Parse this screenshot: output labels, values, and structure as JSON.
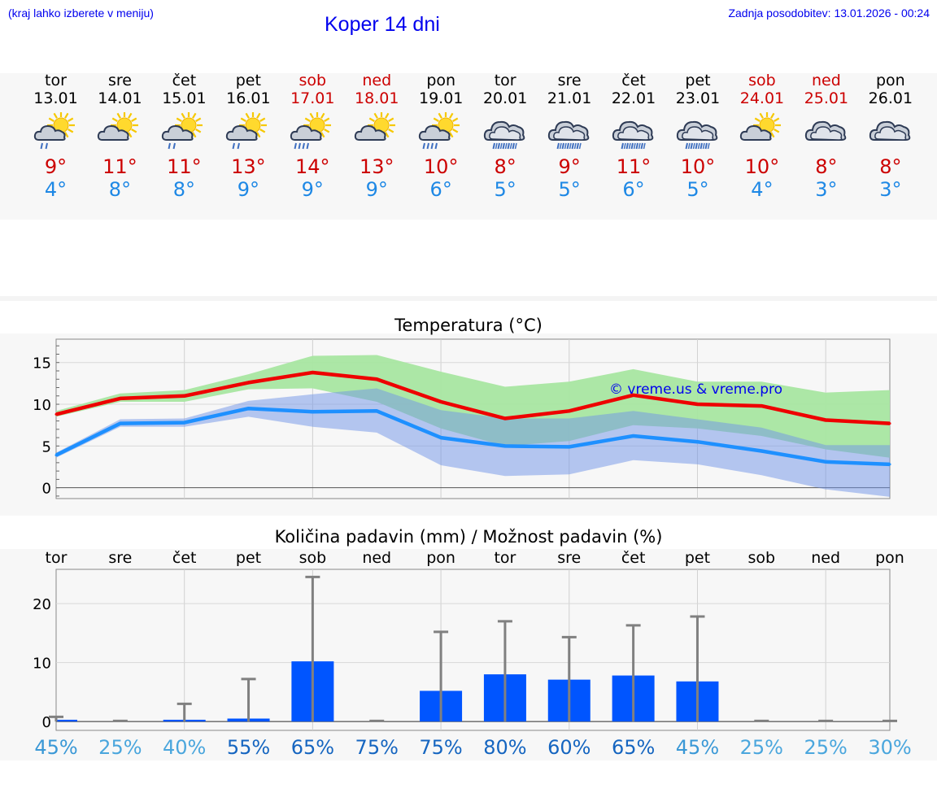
{
  "header": {
    "menu_hint": "(kraj lahko izberete v meniju)",
    "title": "Koper 14 dni",
    "updated": "Zadnja posodobitev: 13.01.2026 - 00:24"
  },
  "colors": {
    "max_line": "#ee0000",
    "min_line": "#1e90ff",
    "max_band": "#a8e6a1",
    "min_band": "#a9c4f5",
    "overlap_band": "#7cc4a0",
    "bar": "#0055ff",
    "errorbar": "#808080",
    "weekend_text": "#cc0000"
  },
  "days": [
    {
      "name": "tor",
      "date": "13.01",
      "weekend": false,
      "icon": "sun-cloud-light-rain-icon",
      "tmax": "9°",
      "tmin": "4°"
    },
    {
      "name": "sre",
      "date": "14.01",
      "weekend": false,
      "icon": "sun-cloud-icon",
      "tmax": "11°",
      "tmin": "8°"
    },
    {
      "name": "čet",
      "date": "15.01",
      "weekend": false,
      "icon": "sun-cloud-light-rain-icon",
      "tmax": "11°",
      "tmin": "8°"
    },
    {
      "name": "pet",
      "date": "16.01",
      "weekend": false,
      "icon": "sun-cloud-light-rain-icon",
      "tmax": "13°",
      "tmin": "9°"
    },
    {
      "name": "sob",
      "date": "17.01",
      "weekend": true,
      "icon": "sun-cloud-rain-icon",
      "tmax": "14°",
      "tmin": "9°"
    },
    {
      "name": "ned",
      "date": "18.01",
      "weekend": true,
      "icon": "sun-cloud-icon",
      "tmax": "13°",
      "tmin": "9°"
    },
    {
      "name": "pon",
      "date": "19.01",
      "weekend": false,
      "icon": "sun-cloud-rain-icon",
      "tmax": "10°",
      "tmin": "6°"
    },
    {
      "name": "tor",
      "date": "20.01",
      "weekend": false,
      "icon": "cloud-rain-icon",
      "tmax": "8°",
      "tmin": "5°"
    },
    {
      "name": "sre",
      "date": "21.01",
      "weekend": false,
      "icon": "cloud-rain-icon",
      "tmax": "9°",
      "tmin": "5°"
    },
    {
      "name": "čet",
      "date": "22.01",
      "weekend": false,
      "icon": "cloud-rain-icon",
      "tmax": "11°",
      "tmin": "6°"
    },
    {
      "name": "pet",
      "date": "23.01",
      "weekend": false,
      "icon": "cloud-rain-icon",
      "tmax": "10°",
      "tmin": "5°"
    },
    {
      "name": "sob",
      "date": "24.01",
      "weekend": true,
      "icon": "sun-cloud-icon",
      "tmax": "10°",
      "tmin": "4°"
    },
    {
      "name": "ned",
      "date": "25.01",
      "weekend": true,
      "icon": "cloud-icon",
      "tmax": "8°",
      "tmin": "3°"
    },
    {
      "name": "pon",
      "date": "26.01",
      "weekend": false,
      "icon": "cloud-icon",
      "tmax": "8°",
      "tmin": "3°"
    }
  ],
  "chart_data": [
    {
      "type": "line",
      "title": "Temperatura (°C)",
      "watermark": "© vreme.us & vreme.pro",
      "x": [
        0,
        1,
        2,
        3,
        4,
        5,
        6,
        7,
        8,
        9,
        10,
        11,
        12,
        13
      ],
      "ylim": [
        -1.3,
        17.8
      ],
      "yticks": [
        0,
        5,
        10,
        15
      ],
      "grid": true,
      "series": [
        {
          "name": "max",
          "values": [
            8.8,
            10.7,
            11.0,
            12.6,
            13.8,
            13.0,
            10.3,
            8.3,
            9.2,
            11.1,
            10.0,
            9.8,
            8.1,
            7.7
          ],
          "band_low": [
            8.5,
            10.3,
            10.3,
            11.8,
            11.9,
            10.3,
            7.1,
            5.0,
            5.6,
            7.5,
            7.1,
            6.2,
            4.6,
            3.6
          ],
          "band_high": [
            9.2,
            11.3,
            11.7,
            13.6,
            15.8,
            15.9,
            13.9,
            12.1,
            12.7,
            14.2,
            12.7,
            12.7,
            11.4,
            11.7
          ]
        },
        {
          "name": "min",
          "values": [
            3.9,
            7.7,
            7.8,
            9.5,
            9.1,
            9.2,
            6.0,
            5.0,
            4.9,
            6.2,
            5.5,
            4.4,
            3.1,
            2.8
          ],
          "band_low": [
            3.6,
            7.3,
            7.3,
            8.5,
            7.3,
            6.6,
            2.7,
            1.4,
            1.6,
            3.3,
            2.8,
            1.5,
            -0.2,
            -1.1
          ],
          "band_high": [
            4.2,
            8.2,
            8.3,
            10.4,
            11.2,
            11.9,
            9.3,
            8.3,
            8.3,
            9.2,
            8.2,
            7.2,
            5.1,
            5.1
          ]
        }
      ]
    },
    {
      "type": "bar",
      "title": "Količina padavin (mm) / Možnost padavin (%)",
      "categories": [
        "tor",
        "sre",
        "čet",
        "pet",
        "sob",
        "ned",
        "pon",
        "tor",
        "sre",
        "čet",
        "pet",
        "sob",
        "ned",
        "pon"
      ],
      "values": [
        0.3,
        0,
        0.3,
        0.5,
        10.2,
        0,
        5.2,
        8.0,
        7.1,
        7.8,
        6.8,
        0,
        0,
        0
      ],
      "error_high": [
        0.8,
        0.1,
        3.0,
        7.2,
        24.5,
        0.1,
        15.2,
        17.0,
        14.3,
        16.3,
        17.8,
        0.1,
        0.1,
        0.1
      ],
      "probability": [
        "45%",
        "25%",
        "40%",
        "55%",
        "65%",
        "75%",
        "75%",
        "80%",
        "60%",
        "65%",
        "45%",
        "25%",
        "25%",
        "30%"
      ],
      "ylim": [
        -1.5,
        25.8
      ],
      "yticks": [
        0,
        10,
        20
      ],
      "grid": true
    }
  ]
}
